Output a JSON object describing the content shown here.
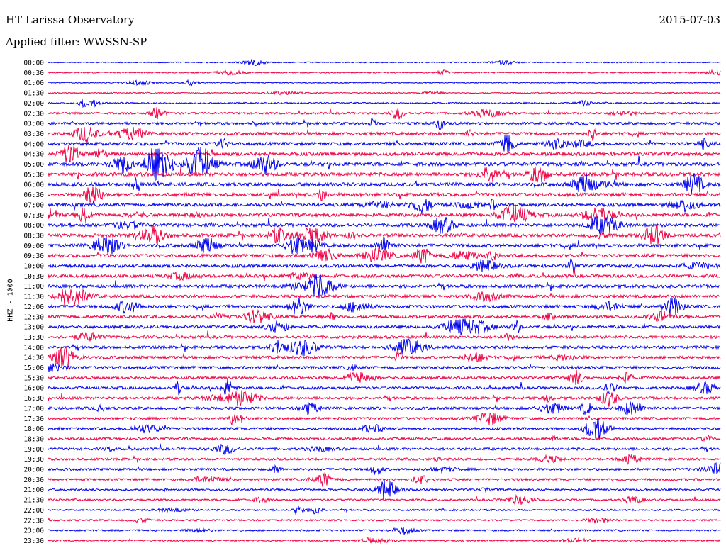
{
  "header": {
    "title": "HT Larissa Observatory",
    "date": "2015-07-03",
    "filter": "Applied filter: WWSSN-SP"
  },
  "chart_data": {
    "type": "line",
    "ylabel": "HHZ - 1000",
    "colors": [
      "#0000ee",
      "#ee0044"
    ],
    "categories": [
      "00:00",
      "00:30",
      "01:00",
      "01:30",
      "02:00",
      "02:30",
      "03:00",
      "03:30",
      "04:00",
      "04:30",
      "05:00",
      "05:30",
      "06:00",
      "06:30",
      "07:00",
      "07:30",
      "08:00",
      "08:30",
      "09:00",
      "09:30",
      "10:00",
      "10:30",
      "11:00",
      "11:30",
      "12:00",
      "12:30",
      "13:00",
      "13:30",
      "14:00",
      "14:30",
      "15:00",
      "15:30",
      "16:00",
      "16:30",
      "17:00",
      "17:30",
      "18:00",
      "18:30",
      "19:00",
      "19:30",
      "20:00",
      "20:30",
      "21:00",
      "21:30",
      "22:00",
      "22:30",
      "23:00",
      "23:30"
    ],
    "activity": [
      0.15,
      0.2,
      0.15,
      0.15,
      0.3,
      0.45,
      0.6,
      0.7,
      0.8,
      0.9,
      0.95,
      0.95,
      0.95,
      0.9,
      0.85,
      0.85,
      0.85,
      0.85,
      0.85,
      0.8,
      0.8,
      0.8,
      0.8,
      0.75,
      0.75,
      0.75,
      0.7,
      0.7,
      0.7,
      0.7,
      0.7,
      0.65,
      0.65,
      0.65,
      0.65,
      0.6,
      0.6,
      0.6,
      0.6,
      0.55,
      0.55,
      0.5,
      0.45,
      0.4,
      0.35,
      0.35,
      0.35,
      0.3
    ]
  }
}
